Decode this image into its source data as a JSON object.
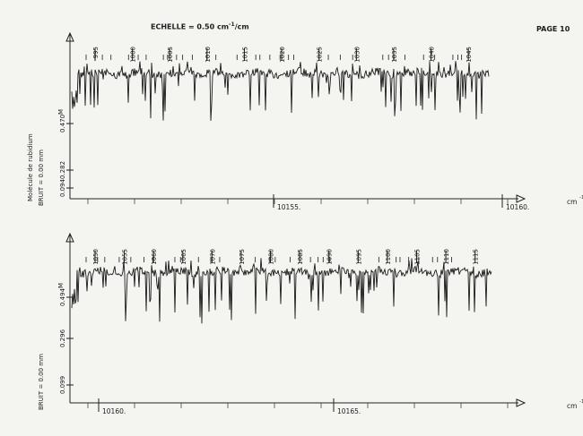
{
  "header": {
    "scale_label": "ECHELLE = 0.50 cm",
    "scale_exp": "-1",
    "scale_suffix": "/cm",
    "page_label": "PAGE 10"
  },
  "chart_data": [
    {
      "type": "line",
      "xlabel": "cm-1",
      "xlim": [
        10150.7,
        10160.0
      ],
      "x_ticks": [
        "10155.",
        "10160."
      ],
      "ylim": [
        0.094,
        0.47
      ],
      "y_ticks": [
        "0.470",
        "0.282",
        "0.094"
      ],
      "y_marker": "M",
      "side_labels": [
        "Molécule de rubidium",
        "BRUIT = 0.00 mm"
      ],
      "line_ids": [
        "995",
        "1000",
        "1005",
        "1010",
        "1015",
        "1020",
        "1025",
        "1030",
        "1035",
        "1040",
        "1045"
      ],
      "baseline_level": 0.435,
      "noise_level": 0.0
    },
    {
      "type": "line",
      "xlabel": "cm-1",
      "xlim": [
        10159.0,
        10169.7
      ],
      "x_ticks": [
        "10160.",
        "10165."
      ],
      "ylim": [
        0.099,
        0.494
      ],
      "y_ticks": [
        "0.494",
        "0.296",
        "0.099"
      ],
      "y_marker": "M",
      "side_labels": [
        "BRUIT = 0.00 mm"
      ],
      "line_ids": [
        "1050",
        "1055",
        "1060",
        "1065",
        "1070",
        "1075",
        "1080",
        "1085",
        "1090",
        "1095",
        "1100",
        "1105",
        "1110",
        "1115"
      ],
      "baseline_level": 0.45,
      "noise_level": 0.0
    }
  ]
}
